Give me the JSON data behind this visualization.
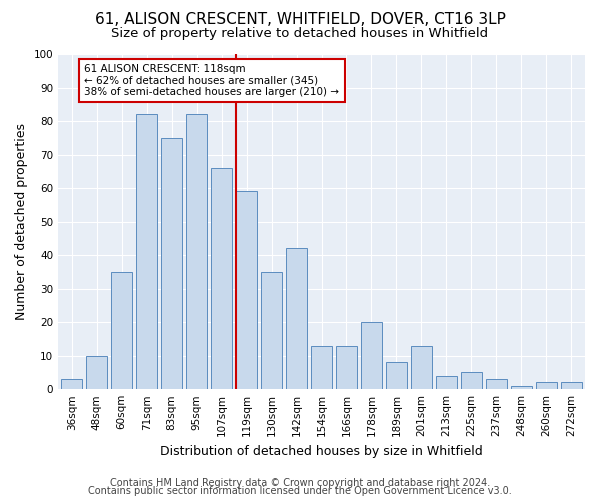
{
  "title1": "61, ALISON CRESCENT, WHITFIELD, DOVER, CT16 3LP",
  "title2": "Size of property relative to detached houses in Whitfield",
  "xlabel": "Distribution of detached houses by size in Whitfield",
  "ylabel": "Number of detached properties",
  "categories": [
    "36sqm",
    "48sqm",
    "60sqm",
    "71sqm",
    "83sqm",
    "95sqm",
    "107sqm",
    "119sqm",
    "130sqm",
    "142sqm",
    "154sqm",
    "166sqm",
    "178sqm",
    "189sqm",
    "201sqm",
    "213sqm",
    "225sqm",
    "237sqm",
    "248sqm",
    "260sqm",
    "272sqm"
  ],
  "values": [
    3,
    10,
    35,
    82,
    75,
    82,
    66,
    59,
    35,
    42,
    13,
    13,
    20,
    8,
    13,
    4,
    5,
    3,
    1,
    2,
    2
  ],
  "bar_color": "#c8d9ec",
  "bar_edge_color": "#5b8cbf",
  "annotation_text": "61 ALISON CRESCENT: 118sqm\n← 62% of detached houses are smaller (345)\n38% of semi-detached houses are larger (210) →",
  "annotation_box_color": "#ffffff",
  "annotation_box_edge": "#cc0000",
  "vline_color": "#cc0000",
  "footer1": "Contains HM Land Registry data © Crown copyright and database right 2024.",
  "footer2": "Contains public sector information licensed under the Open Government Licence v3.0.",
  "background_color": "#e8eef6",
  "fig_background_color": "#ffffff",
  "grid_color": "#ffffff",
  "ylim": [
    0,
    100
  ],
  "title1_fontsize": 11,
  "title2_fontsize": 9.5,
  "axis_label_fontsize": 9,
  "tick_fontsize": 7.5,
  "annotation_fontsize": 7.5,
  "footer_fontsize": 7
}
